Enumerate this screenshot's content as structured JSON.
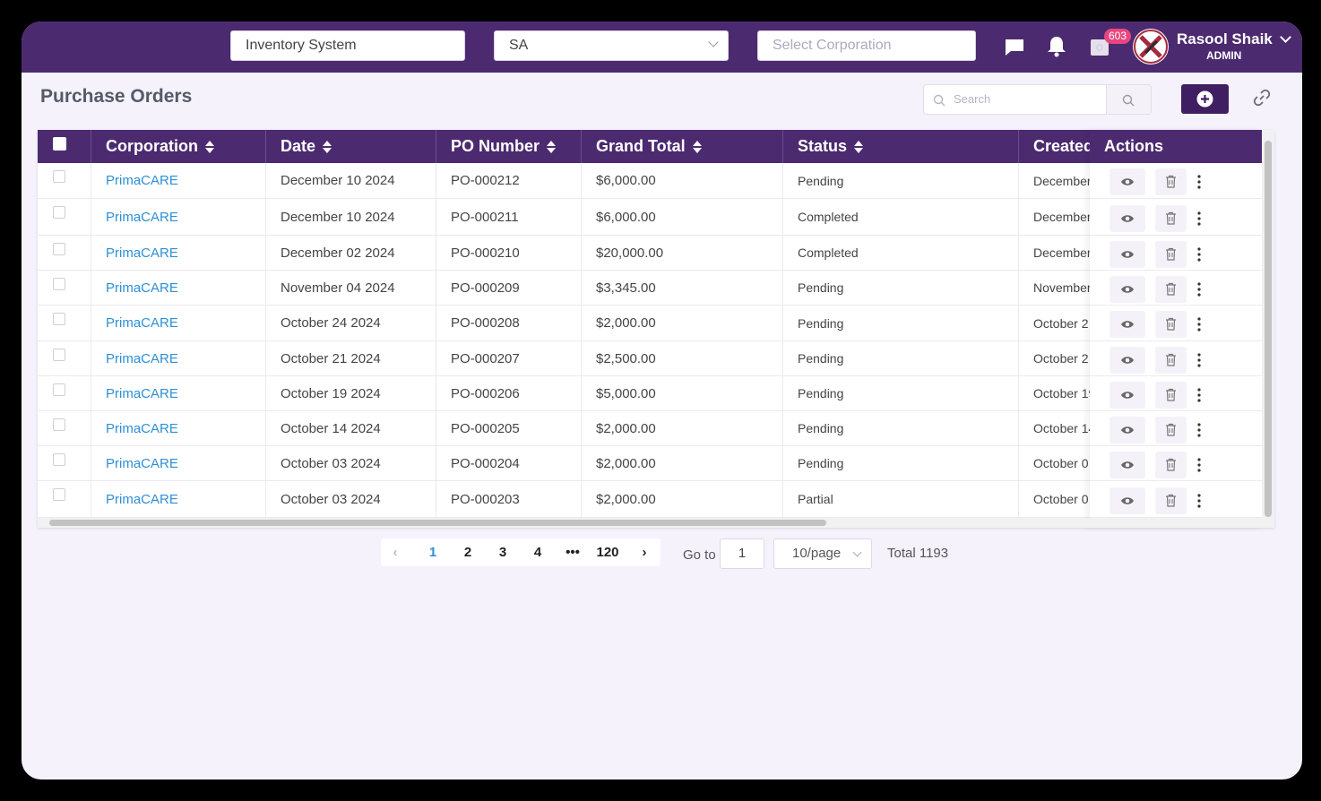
{
  "header": {
    "system_value": "Inventory System",
    "region_value": "SA",
    "corporation_placeholder": "Select Corporation",
    "notification_badge": "603",
    "user_name": "Rasool Shaik",
    "user_role": "ADMIN",
    "icons": [
      "chat-icon",
      "bell-icon",
      "cart-icon",
      "chevron-down-icon"
    ]
  },
  "page": {
    "title": "Purchase Orders",
    "search_placeholder": "Search"
  },
  "table": {
    "columns": [
      "Corporation",
      "Date",
      "PO Number",
      "Grand Total",
      "Status",
      "Created",
      "Actions"
    ],
    "rows": [
      {
        "corporation": "PrimaCARE",
        "date": "December 10 2024",
        "po": "PO-000212",
        "total": "$6,000.00",
        "status": "Pending",
        "created": "December"
      },
      {
        "corporation": "PrimaCARE",
        "date": "December 10 2024",
        "po": "PO-000211",
        "total": "$6,000.00",
        "status": "Completed",
        "created": "December"
      },
      {
        "corporation": "PrimaCARE",
        "date": "December 02 2024",
        "po": "PO-000210",
        "total": "$20,000.00",
        "status": "Completed",
        "created": "December"
      },
      {
        "corporation": "PrimaCARE",
        "date": "November 04 2024",
        "po": "PO-000209",
        "total": "$3,345.00",
        "status": "Pending",
        "created": "November"
      },
      {
        "corporation": "PrimaCARE",
        "date": "October 24 2024",
        "po": "PO-000208",
        "total": "$2,000.00",
        "status": "Pending",
        "created": "October 2"
      },
      {
        "corporation": "PrimaCARE",
        "date": "October 21 2024",
        "po": "PO-000207",
        "total": "$2,500.00",
        "status": "Pending",
        "created": "October 2"
      },
      {
        "corporation": "PrimaCARE",
        "date": "October 19 2024",
        "po": "PO-000206",
        "total": "$5,000.00",
        "status": "Pending",
        "created": "October 19"
      },
      {
        "corporation": "PrimaCARE",
        "date": "October 14 2024",
        "po": "PO-000205",
        "total": "$2,000.00",
        "status": "Pending",
        "created": "October 14"
      },
      {
        "corporation": "PrimaCARE",
        "date": "October 03 2024",
        "po": "PO-000204",
        "total": "$2,000.00",
        "status": "Pending",
        "created": "October 0"
      },
      {
        "corporation": "PrimaCARE",
        "date": "October 03 2024",
        "po": "PO-000203",
        "total": "$2,000.00",
        "status": "Partial",
        "created": "October 0"
      }
    ]
  },
  "pagination": {
    "pages": [
      "1",
      "2",
      "3",
      "4",
      "•••",
      "120"
    ],
    "active_page": "1",
    "goto_label": "Go to",
    "goto_value": "1",
    "per_page": "10/page",
    "total": "Total 1193"
  },
  "colors": {
    "brand": "#4c2a70",
    "link": "#2e8fd6",
    "badge": "#e8467f",
    "background": "#f5f2fc"
  }
}
